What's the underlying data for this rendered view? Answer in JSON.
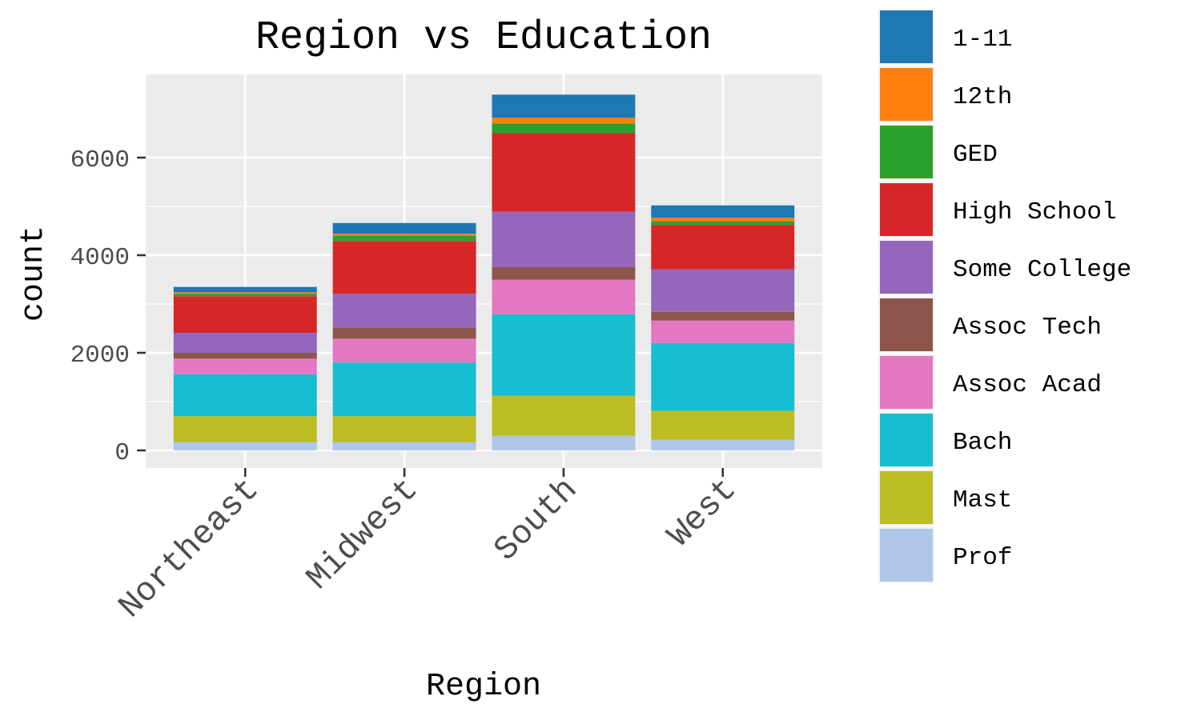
{
  "chart_data": {
    "type": "bar",
    "stacked": true,
    "title": "Region vs Education",
    "xlabel": "Region",
    "ylabel": "count",
    "ylim": [
      0,
      7700
    ],
    "yticks": [
      0,
      2000,
      4000,
      6000
    ],
    "grid": true,
    "legend_position": "right",
    "categories": [
      "Northeast",
      "Midwest",
      "South",
      "West"
    ],
    "series": [
      {
        "name": "Prof",
        "color": "#aec7e8",
        "values": [
          170,
          170,
          300,
          220
        ]
      },
      {
        "name": "Mast",
        "color": "#bcbd22",
        "values": [
          530,
          530,
          820,
          590
        ]
      },
      {
        "name": "Bach",
        "color": "#17becf",
        "values": [
          860,
          1100,
          1670,
          1390
        ]
      },
      {
        "name": "Assoc Acad",
        "color": "#e377c2",
        "values": [
          320,
          490,
          710,
          460
        ]
      },
      {
        "name": "Assoc Tech",
        "color": "#8c564b",
        "values": [
          120,
          230,
          260,
          180
        ]
      },
      {
        "name": "Some College",
        "color": "#9467bd",
        "values": [
          410,
          690,
          1130,
          870
        ]
      },
      {
        "name": "High School",
        "color": "#d62728",
        "values": [
          750,
          1080,
          1610,
          910
        ]
      },
      {
        "name": "GED",
        "color": "#2ca02c",
        "values": [
          50,
          110,
          200,
          80
        ]
      },
      {
        "name": "12th",
        "color": "#ff7f0e",
        "values": [
          30,
          40,
          120,
          70
        ]
      },
      {
        "name": "1-11",
        "color": "#1f77b4",
        "values": [
          110,
          220,
          470,
          250
        ]
      }
    ],
    "legend_order": [
      "1-11",
      "12th",
      "GED",
      "High School",
      "Some College",
      "Assoc Tech",
      "Assoc Acad",
      "Bach",
      "Mast",
      "Prof"
    ],
    "panel_background": "#ebebeb",
    "grid_color": "#ffffff"
  }
}
